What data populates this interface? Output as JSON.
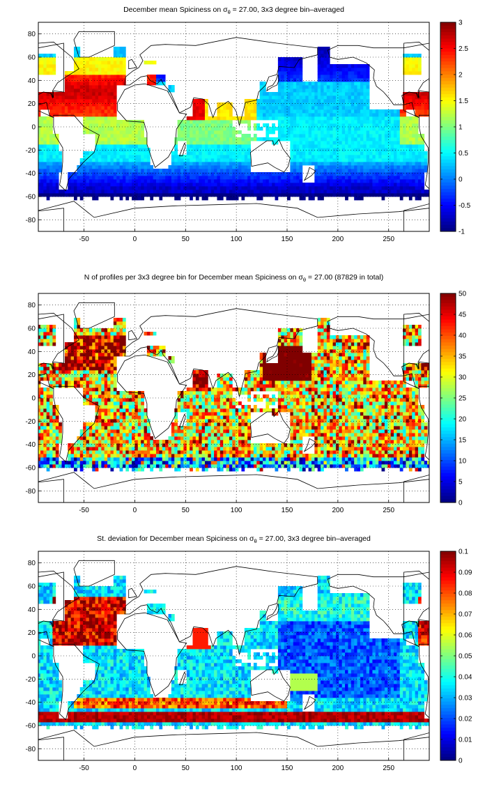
{
  "colors": {
    "land": "#ffffff",
    "coast": "#000000",
    "grid": "#000000",
    "frame": "#000000",
    "colormap": "jet"
  },
  "chart_data": [
    {
      "type": "heatmap",
      "title_prefix": "December mean Spiciness on σ",
      "title_sub": "θ",
      "title_suffix": " = 27.00, 3x3 degree bin–averaged",
      "x_ticks": [
        -50,
        0,
        50,
        100,
        150,
        200,
        250
      ],
      "y_ticks": [
        80,
        60,
        40,
        20,
        0,
        -20,
        -40,
        -60,
        -80
      ],
      "xlim": [
        -95,
        290
      ],
      "ylim": [
        -90,
        90
      ],
      "grid": "dotted",
      "colorbar": {
        "min": -1,
        "max": 3,
        "ticks": [
          "3",
          "2.5",
          "2",
          "1.5",
          "1",
          "0.5",
          "0",
          "-0.5",
          "-1"
        ]
      },
      "bin_size_deg": 3,
      "pattern": "Warm, salty North Atlantic (~2.5) and Arabian Sea (~2.5); tropical Atlantic/Indian ~1; Pacific subtropics ~0.5; Southern Ocean and North Pacific ~-0.5 to -1"
    },
    {
      "type": "heatmap",
      "title_prefix": "N of profiles per 3x3 degree bin for December mean Spiciness on σ",
      "title_sub": "θ",
      "title_suffix": " = 27.00 (87829 in total)",
      "total_profiles": 87829,
      "x_ticks": [
        -50,
        0,
        50,
        100,
        150,
        200,
        250
      ],
      "y_ticks": [
        80,
        60,
        40,
        20,
        0,
        -20,
        -40,
        -60,
        -80
      ],
      "xlim": [
        -95,
        290
      ],
      "ylim": [
        -90,
        90
      ],
      "grid": "dotted",
      "colorbar": {
        "min": 0,
        "max": 50,
        "ticks": [
          "50",
          "45",
          "40",
          "35",
          "30",
          "25",
          "20",
          "15",
          "10",
          "5",
          "0"
        ]
      },
      "bin_size_deg": 3,
      "pattern": "High counts (≥50) in NW Pacific, North Atlantic and Arabian Sea; moderate 15–35 elsewhere; low near -60°"
    },
    {
      "type": "heatmap",
      "title_prefix": "St. deviation for December mean Spiciness on σ",
      "title_sub": "θ",
      "title_suffix": " = 27.00, 3x3 degree bin–averaged",
      "x_ticks": [
        -50,
        0,
        50,
        100,
        150,
        200,
        250
      ],
      "y_ticks": [
        80,
        60,
        40,
        20,
        0,
        -20,
        -40,
        -60,
        -80
      ],
      "xlim": [
        -95,
        290
      ],
      "ylim": [
        -90,
        90
      ],
      "grid": "dotted",
      "colorbar": {
        "min": 0,
        "max": 0.1,
        "ticks": [
          "0.1",
          "0.09",
          "0.08",
          "0.07",
          "0.06",
          "0.05",
          "0.04",
          "0.03",
          "0.02",
          "0.01",
          "0"
        ]
      },
      "bin_size_deg": 3,
      "pattern": "High (≥0.09) North Atlantic, Arabian Sea and band near -50° (ACC); low (~0.01) central Pacific"
    }
  ]
}
